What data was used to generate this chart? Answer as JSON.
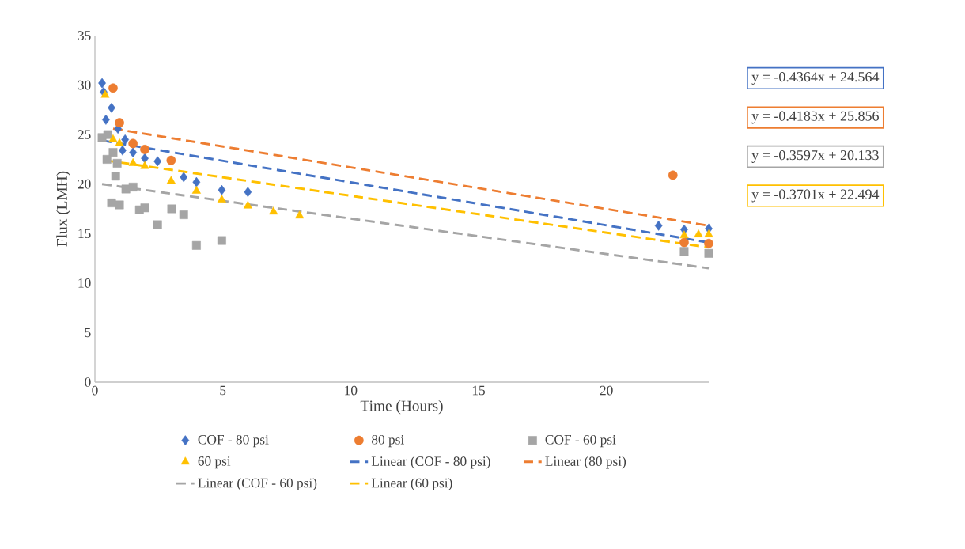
{
  "chart_data": {
    "type": "scatter",
    "xlabel": "Time (Hours)",
    "ylabel": "Flux (LMH)",
    "xlim": [
      0,
      24
    ],
    "xticks": [
      0,
      5,
      10,
      15,
      20
    ],
    "ylim": [
      0,
      35
    ],
    "yticks": [
      0,
      5,
      10,
      15,
      20,
      25,
      30,
      35
    ],
    "grid": false,
    "legend": "bottom",
    "series": [
      {
        "name": "COF - 80 psi",
        "marker": "diamond",
        "color": "#4472c4",
        "x": [
          0.28,
          0.34,
          0.65,
          0.43,
          0.9,
          1.08,
          1.18,
          1.49,
          1.95,
          2.45,
          3.47,
          3.97,
          4.96,
          5.98,
          22.04,
          23.04,
          24
        ],
        "values": [
          30.2,
          29.3,
          27.7,
          26.5,
          25.6,
          23.4,
          24.5,
          23.2,
          22.6,
          22.3,
          20.7,
          20.2,
          19.4,
          19.2,
          15.8,
          15.4,
          15.5
        ]
      },
      {
        "name": "80 psi",
        "marker": "circle",
        "color": "#ed7d31",
        "x": [
          0.71,
          0.96,
          1.49,
          1.95,
          2.98,
          22.6,
          23.04,
          24
        ],
        "values": [
          29.7,
          26.2,
          24.1,
          23.5,
          22.4,
          20.9,
          14.1,
          14.0
        ]
      },
      {
        "name": "COF - 60 psi",
        "marker": "square",
        "color": "#a5a5a5",
        "x": [
          0.28,
          0.5,
          0.71,
          0.47,
          0.87,
          0.81,
          1.21,
          1.49,
          0.65,
          0.96,
          1.74,
          1.95,
          2.45,
          3.0,
          3.47,
          3.97,
          4.96,
          23.04,
          24
        ],
        "values": [
          24.7,
          25.0,
          23.2,
          22.5,
          22.1,
          20.8,
          19.5,
          19.7,
          18.1,
          17.9,
          17.4,
          17.6,
          15.9,
          17.5,
          16.9,
          13.8,
          14.3,
          13.2,
          13.0
        ]
      },
      {
        "name": "60 psi",
        "marker": "triangle",
        "color": "#ffc000",
        "x": [
          0.4,
          0.71,
          0.96,
          1.49,
          1.95,
          2.98,
          3.97,
          4.96,
          5.98,
          6.98,
          8.0,
          23.04,
          23.6,
          24
        ],
        "values": [
          29.0,
          24.5,
          24.1,
          22.1,
          21.8,
          20.3,
          19.3,
          18.4,
          17.8,
          17.2,
          16.8,
          14.8,
          14.9,
          14.9
        ]
      },
      {
        "name": "Linear (COF - 80 psi)",
        "type": "line",
        "line_style": "dashed",
        "marker": "none",
        "color": "#4472c4",
        "x": [
          0.28,
          24
        ],
        "values": [
          24.4,
          14.1
        ]
      },
      {
        "name": "Linear (80 psi)",
        "type": "line",
        "line_style": "dashed",
        "marker": "none",
        "color": "#ed7d31",
        "x": [
          0.71,
          24
        ],
        "values": [
          25.6,
          15.8
        ]
      },
      {
        "name": "Linear (COF - 60 psi)",
        "type": "line",
        "line_style": "dashed",
        "marker": "none",
        "color": "#a5a5a5",
        "x": [
          0.28,
          24
        ],
        "values": [
          20.0,
          11.5
        ]
      },
      {
        "name": "Linear (60 psi)",
        "type": "line",
        "line_style": "dashed",
        "marker": "none",
        "color": "#ffc000",
        "x": [
          0.4,
          24
        ],
        "values": [
          22.4,
          13.6
        ]
      }
    ],
    "annotations": [
      "y = -0.4364x + 24.564",
      "y = -0.4183x + 25.856",
      "y = -0.3597x + 20.133",
      "y = -0.3701x + 22.494"
    ]
  }
}
